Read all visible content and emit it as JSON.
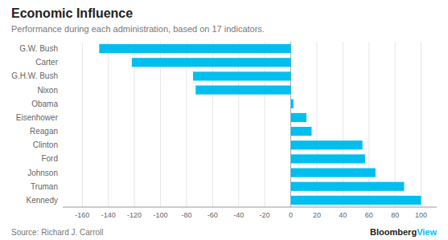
{
  "chart_data": {
    "type": "bar",
    "orientation": "horizontal",
    "title": "Economic Influence",
    "subtitle": "Performance during each administration, based on 17 indicators.",
    "annotations": [
      {
        "text": "Source: Richard J. Carroll"
      },
      {
        "text": "Bloomberg",
        "color": "#222222"
      },
      {
        "text": "View",
        "color": "#00bfef"
      }
    ],
    "categories": [
      "G.W. Bush",
      "Carter",
      "G.H.W. Bush",
      "Nixon",
      "Obama",
      "Eisenhower",
      "Reagan",
      "Clinton",
      "Ford",
      "Johnson",
      "Truman",
      "Kennedy"
    ],
    "values": [
      -147,
      -122,
      -75,
      -73,
      2,
      12,
      16,
      55,
      57,
      65,
      87,
      100
    ],
    "color": "#00bfef",
    "xlim": [
      -175,
      112
    ],
    "xticks": [
      -160,
      -140,
      -120,
      -100,
      -80,
      -60,
      -40,
      -20,
      0,
      20,
      40,
      60,
      80,
      100
    ],
    "grid": true
  }
}
